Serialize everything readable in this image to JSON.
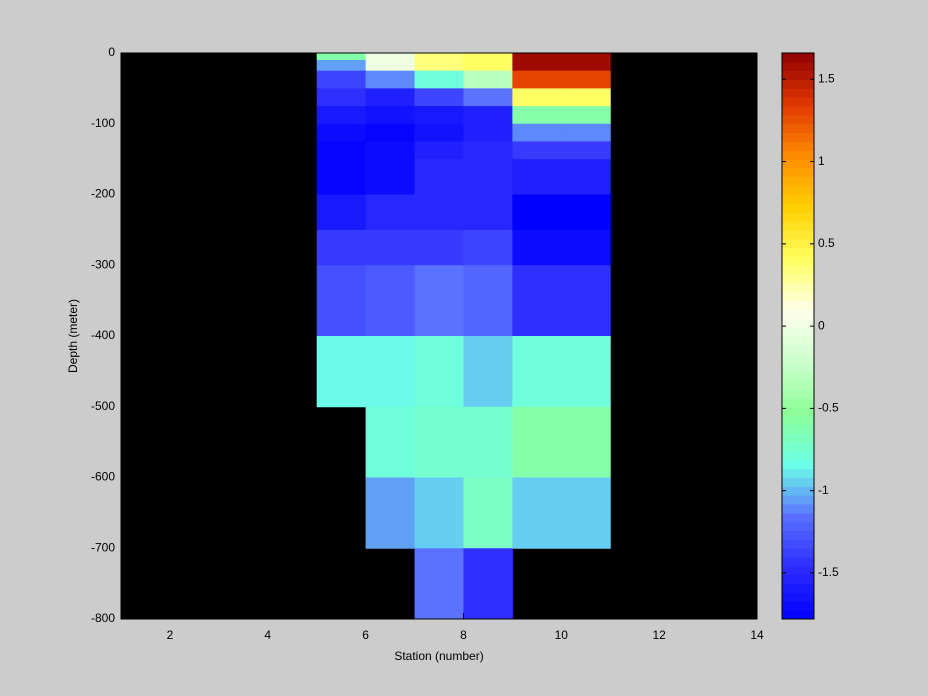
{
  "chart_data": {
    "type": "heatmap",
    "xlabel": "Station (number)",
    "ylabel": "Depth (meter)",
    "xlim": [
      1,
      14
    ],
    "ylim": [
      -800,
      0
    ],
    "xticks": [
      2,
      4,
      6,
      8,
      10,
      12,
      14
    ],
    "yticks": [
      0,
      -100,
      -200,
      -300,
      -400,
      -500,
      -600,
      -700,
      -800
    ],
    "x_edges": [
      5,
      6,
      7,
      8,
      9,
      10,
      11
    ],
    "y_edges": [
      0,
      -10,
      -25,
      -50,
      -75,
      -100,
      -125,
      -150,
      -200,
      -250,
      -300,
      -400,
      -500,
      -600,
      -700,
      -800
    ],
    "z": [
      [
        -0.6,
        0,
        0.35,
        0.4,
        1.6,
        1.6
      ],
      [
        -1.05,
        0,
        0.35,
        0.4,
        1.6,
        1.6
      ],
      [
        -1.35,
        -1.1,
        -0.8,
        -0.3,
        1.3,
        1.3
      ],
      [
        -1.45,
        -1.55,
        -1.35,
        -1.15,
        0.4,
        0.4
      ],
      [
        -1.6,
        -1.65,
        -1.6,
        -1.55,
        -0.6,
        -0.6
      ],
      [
        -1.7,
        -1.75,
        -1.65,
        -1.55,
        -1.1,
        -1.1
      ],
      [
        -1.75,
        -1.7,
        -1.55,
        -1.5,
        -1.4,
        -1.4
      ],
      [
        -1.75,
        -1.7,
        -1.5,
        -1.5,
        -1.55,
        -1.55
      ],
      [
        -1.6,
        -1.5,
        -1.5,
        -1.5,
        -1.78,
        -1.78
      ],
      [
        -1.4,
        -1.4,
        -1.4,
        -1.35,
        -1.7,
        -1.7
      ],
      [
        -1.3,
        -1.25,
        -1.15,
        -1.2,
        -1.45,
        -1.45
      ],
      [
        -0.85,
        -0.85,
        -0.8,
        -0.95,
        -0.8,
        -0.8
      ],
      [
        null,
        -0.8,
        -0.75,
        -0.75,
        -0.6,
        -0.6
      ],
      [
        null,
        -1.05,
        -0.95,
        -0.7,
        -0.95,
        -0.95
      ],
      [
        null,
        null,
        -1.15,
        -1.45,
        null,
        null
      ]
    ],
    "clim": [
      -1.78,
      1.66
    ],
    "cbar_ticks": [
      -1.5,
      -1,
      -0.5,
      0,
      0.5,
      1,
      1.5
    ],
    "colormap": [
      "#0000ff",
      "#2c2cff",
      "#5a70ff",
      "#6cffe8",
      "#8cff98",
      "#ccffcc",
      "#ffffec",
      "#ffff60",
      "#ffd000",
      "#ff8c00",
      "#e03800",
      "#900000"
    ],
    "background": "#000000"
  }
}
